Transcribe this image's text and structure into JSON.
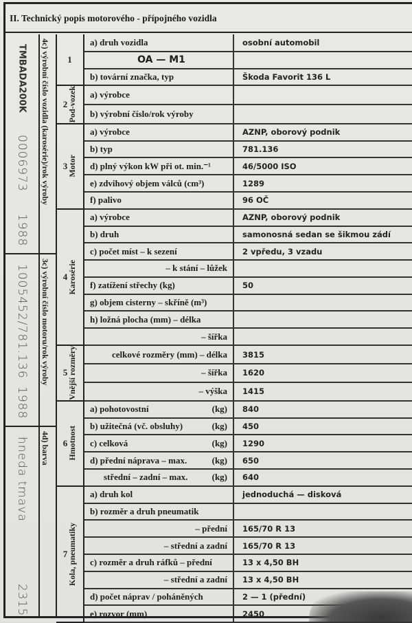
{
  "title": "II. Technický popis motorového - přípojného vozidla",
  "left_columns": [
    {
      "label": "4c) výrobní číslo vozidla (karosérie)/rok výroby",
      "values": [
        "TMBADA200K",
        "0006973",
        "1988"
      ]
    },
    {
      "label": "3c) výrobní číslo motoru/rok výroby",
      "values": [
        "1005452/781.136",
        "1988"
      ]
    },
    {
      "label": "4d) barva",
      "values": [
        "hneda tmava",
        "2315"
      ]
    }
  ],
  "sections": [
    {
      "num": "1",
      "title": "",
      "rows": [
        {
          "label": "a) druh vozidla",
          "value": "osobní automobil"
        },
        {
          "label": "OA — M1",
          "align": "center",
          "value": ""
        },
        {
          "label": "b) tovární značka, typ",
          "value": "Škoda Favorit 136 L"
        }
      ]
    },
    {
      "num": "2",
      "title": "Pod-vozek",
      "rows": [
        {
          "label": "a) výrobce",
          "value": ""
        },
        {
          "label": "b) výrobní číslo/rok výroby",
          "value": ""
        }
      ]
    },
    {
      "num": "3",
      "title": "Motor",
      "rows": [
        {
          "label": "a) výrobce",
          "value": "AZNP, oborový podnik"
        },
        {
          "label": "b) typ",
          "value": "781.136"
        },
        {
          "label": "d) plný výkon kW při ot. min.⁻¹",
          "value": "46/5000 ISO"
        },
        {
          "label": "e) zdvihový objem válců (cm³)",
          "value": "1289"
        },
        {
          "label": "f) palivo",
          "value": "96 OČ"
        }
      ]
    },
    {
      "num": "4",
      "title": "Karosérie",
      "rows": [
        {
          "label": "a) výrobce",
          "value": "AZNP, oborový podnik"
        },
        {
          "label": "b) druh",
          "value": "samonosná sedan se šikmou zádí"
        },
        {
          "label": "c) počet míst – k sezení",
          "value": "2 vpředu, 3 vzadu"
        },
        {
          "label": "– k stání – lůžek",
          "align": "right",
          "value": ""
        },
        {
          "label": "f) zatížení střechy (kg)",
          "value": "50"
        },
        {
          "label": "g) objem cisterny – skříně (m³)",
          "value": ""
        },
        {
          "label": "h) ložná plocha (mm) – délka",
          "value": ""
        },
        {
          "label": "– šířka",
          "align": "right",
          "value": ""
        }
      ]
    },
    {
      "num": "5",
      "title": "Vnější rozměry",
      "rows": [
        {
          "label": "celkové rozměry (mm) – délka",
          "align": "right",
          "value": "3815"
        },
        {
          "label": "– šířka",
          "align": "right",
          "value": "1620"
        },
        {
          "label": "– výška",
          "align": "right",
          "value": "1415"
        }
      ]
    },
    {
      "num": "6",
      "title": "Hmotnost",
      "rows": [
        {
          "label": "a) pohotovostní",
          "unit": "(kg)",
          "value": "840"
        },
        {
          "label": "b) užitečná (vč. obsluhy)",
          "unit": "(kg)",
          "value": "450"
        },
        {
          "label": "c) celková",
          "unit": "(kg)",
          "value": "1290"
        },
        {
          "label": "d) přední náprava – max.",
          "unit": "(kg)",
          "value": "650"
        },
        {
          "label": "střední – zadní – max.",
          "align": "indent",
          "unit": "(kg)",
          "value": "640"
        }
      ]
    },
    {
      "num": "7",
      "title": "Kola, pneumatiky",
      "rows": [
        {
          "label": "a) druh kol",
          "value": "jednoduchá — disková"
        },
        {
          "label": "b) rozměr a druh pneumatik",
          "value": ""
        },
        {
          "label": "– přední",
          "align": "right",
          "value": "165/70 R 13"
        },
        {
          "label": "– střední a zadní",
          "align": "right",
          "value": "165/70 R 13"
        },
        {
          "label": "c) rozměr a druh ráfků – přední",
          "value": "13 x 4,50 BH"
        },
        {
          "label": "– střední a zadní",
          "align": "right",
          "value": "13 x 4,50 BH"
        },
        {
          "label": "d) počet náprav / poháněných",
          "value": "2 — 1 (přední)"
        },
        {
          "label": "e) rozvor (mm)",
          "value": "2450"
        }
      ]
    }
  ]
}
